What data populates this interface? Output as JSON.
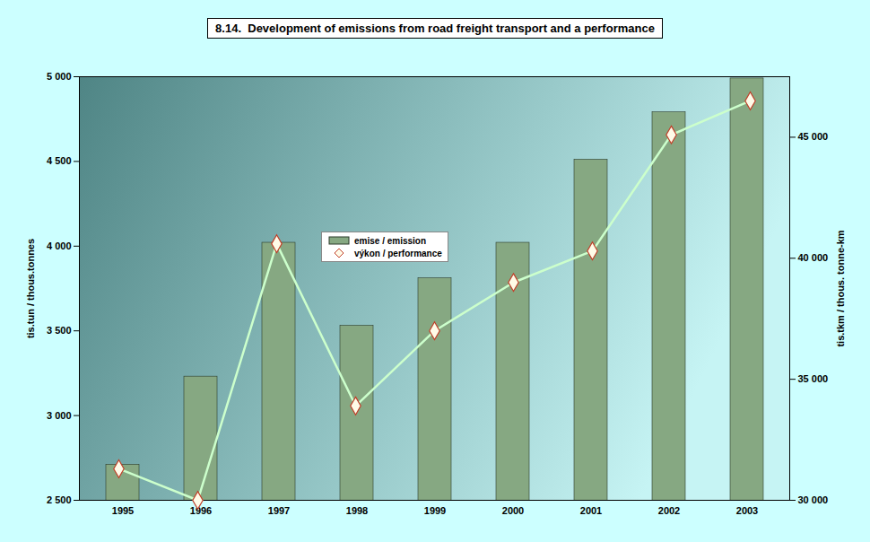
{
  "chart_data": {
    "type": "bar",
    "title": "8.14.  Development of emissions from road freight transport and a performance",
    "categories": [
      "1995",
      "1996",
      "1997",
      "1998",
      "1999",
      "2000",
      "2001",
      "2002",
      "2003"
    ],
    "series": [
      {
        "name": "emise / emission",
        "type": "bar",
        "color": "#86a882",
        "values": [
          2710,
          3230,
          4020,
          3530,
          3810,
          4020,
          4510,
          4790,
          4990
        ]
      },
      {
        "name": "výkon / performance",
        "type": "line",
        "axis": "y2",
        "color": "#ccffcc",
        "marker": "diamond",
        "values": [
          31300,
          30000,
          40600,
          33900,
          37000,
          39000,
          40300,
          45100,
          46500
        ]
      }
    ],
    "ylabel": "tis.tun / thous.tonnes",
    "y2label": "tis.tkm / thous. tonne-km",
    "ylim": [
      2500,
      5000
    ],
    "yticks": [
      {
        "value": 2500,
        "label": "2 500"
      },
      {
        "value": 3000,
        "label": "3 000"
      },
      {
        "value": 3500,
        "label": "3 500"
      },
      {
        "value": 4000,
        "label": "4 000"
      },
      {
        "value": 4500,
        "label": "4 500"
      },
      {
        "value": 5000,
        "label": "5 000"
      }
    ],
    "y2lim": [
      30000,
      47500
    ],
    "y2ticks": [
      {
        "value": 30000,
        "label": "30 000"
      },
      {
        "value": 35000,
        "label": "35 000"
      },
      {
        "value": 40000,
        "label": "40 000"
      },
      {
        "value": 45000,
        "label": "45 000"
      }
    ],
    "legend": "center",
    "grid": false
  }
}
